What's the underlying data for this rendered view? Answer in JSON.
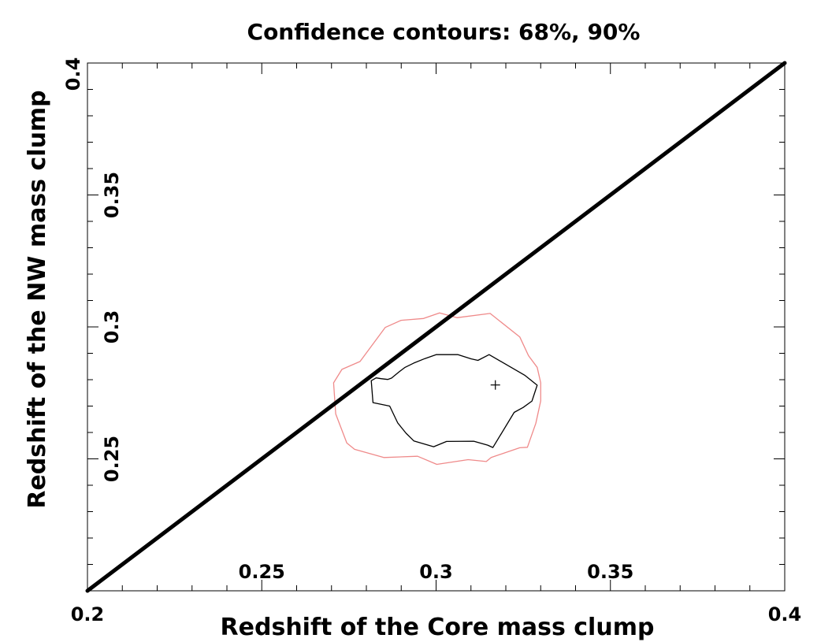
{
  "chart_data": {
    "type": "contour",
    "title": "Confidence contours: 68%, 90%",
    "xlabel": "Redshift of the Core mass clump",
    "ylabel": "Redshift of the NW mass clump",
    "xlim": [
      0.2,
      0.4
    ],
    "ylim": [
      0.2,
      0.4
    ],
    "x_ticks": [
      0.2,
      0.25,
      0.3,
      0.35,
      0.4
    ],
    "x_tick_labels": [
      "0.2",
      "0.25",
      "0.3",
      "0.35",
      "0.4"
    ],
    "y_ticks": [
      0.25,
      0.3,
      0.35,
      0.4
    ],
    "y_tick_labels": [
      "0.25",
      "0.3",
      "0.35",
      "0.4"
    ],
    "grid": false,
    "reference_line": {
      "name": "z_core = z_NW",
      "x": [
        0.2,
        0.4
      ],
      "y": [
        0.2,
        0.4
      ],
      "color": "#000000"
    },
    "best_fit": {
      "x": 0.317,
      "y": 0.278
    },
    "series": [
      {
        "color": "#000000",
        "x": [
          0.2814,
          0.2828,
          0.2842,
          0.2861,
          0.2872,
          0.2894,
          0.291,
          0.2936,
          0.2968,
          0.3,
          0.3063,
          0.31,
          0.312,
          0.3152,
          0.3254,
          0.329,
          0.3275,
          0.325,
          0.3224,
          0.3163,
          0.3148,
          0.3108,
          0.303,
          0.2993,
          0.2936,
          0.2914,
          0.289,
          0.2867,
          0.2819
        ],
        "y": [
          0.2796,
          0.2807,
          0.2804,
          0.2801,
          0.2806,
          0.283,
          0.2846,
          0.2863,
          0.288,
          0.2895,
          0.2895,
          0.2879,
          0.2873,
          0.2895,
          0.2817,
          0.2779,
          0.2719,
          0.2695,
          0.2676,
          0.2543,
          0.2552,
          0.2567,
          0.2566,
          0.2546,
          0.2568,
          0.2597,
          0.2636,
          0.27,
          0.2713
        ]
      },
      {
        "color": "#ef8a8a",
        "x": [
          0.2706,
          0.273,
          0.2782,
          0.2854,
          0.29,
          0.2964,
          0.301,
          0.306,
          0.3155,
          0.324,
          0.3265,
          0.329,
          0.33,
          0.33,
          0.3286,
          0.3262,
          0.324,
          0.3158,
          0.3144,
          0.3092,
          0.3002,
          0.2947,
          0.285,
          0.2766,
          0.2744,
          0.2712,
          0.2706
        ],
        "y": [
          0.2788,
          0.2839,
          0.2869,
          0.2998,
          0.3025,
          0.3032,
          0.3053,
          0.3035,
          0.3051,
          0.2962,
          0.2891,
          0.2847,
          0.2788,
          0.272,
          0.2635,
          0.2544,
          0.2542,
          0.2505,
          0.249,
          0.2497,
          0.2479,
          0.251,
          0.2505,
          0.2536,
          0.256,
          0.267,
          0.2788
        ]
      }
    ]
  }
}
